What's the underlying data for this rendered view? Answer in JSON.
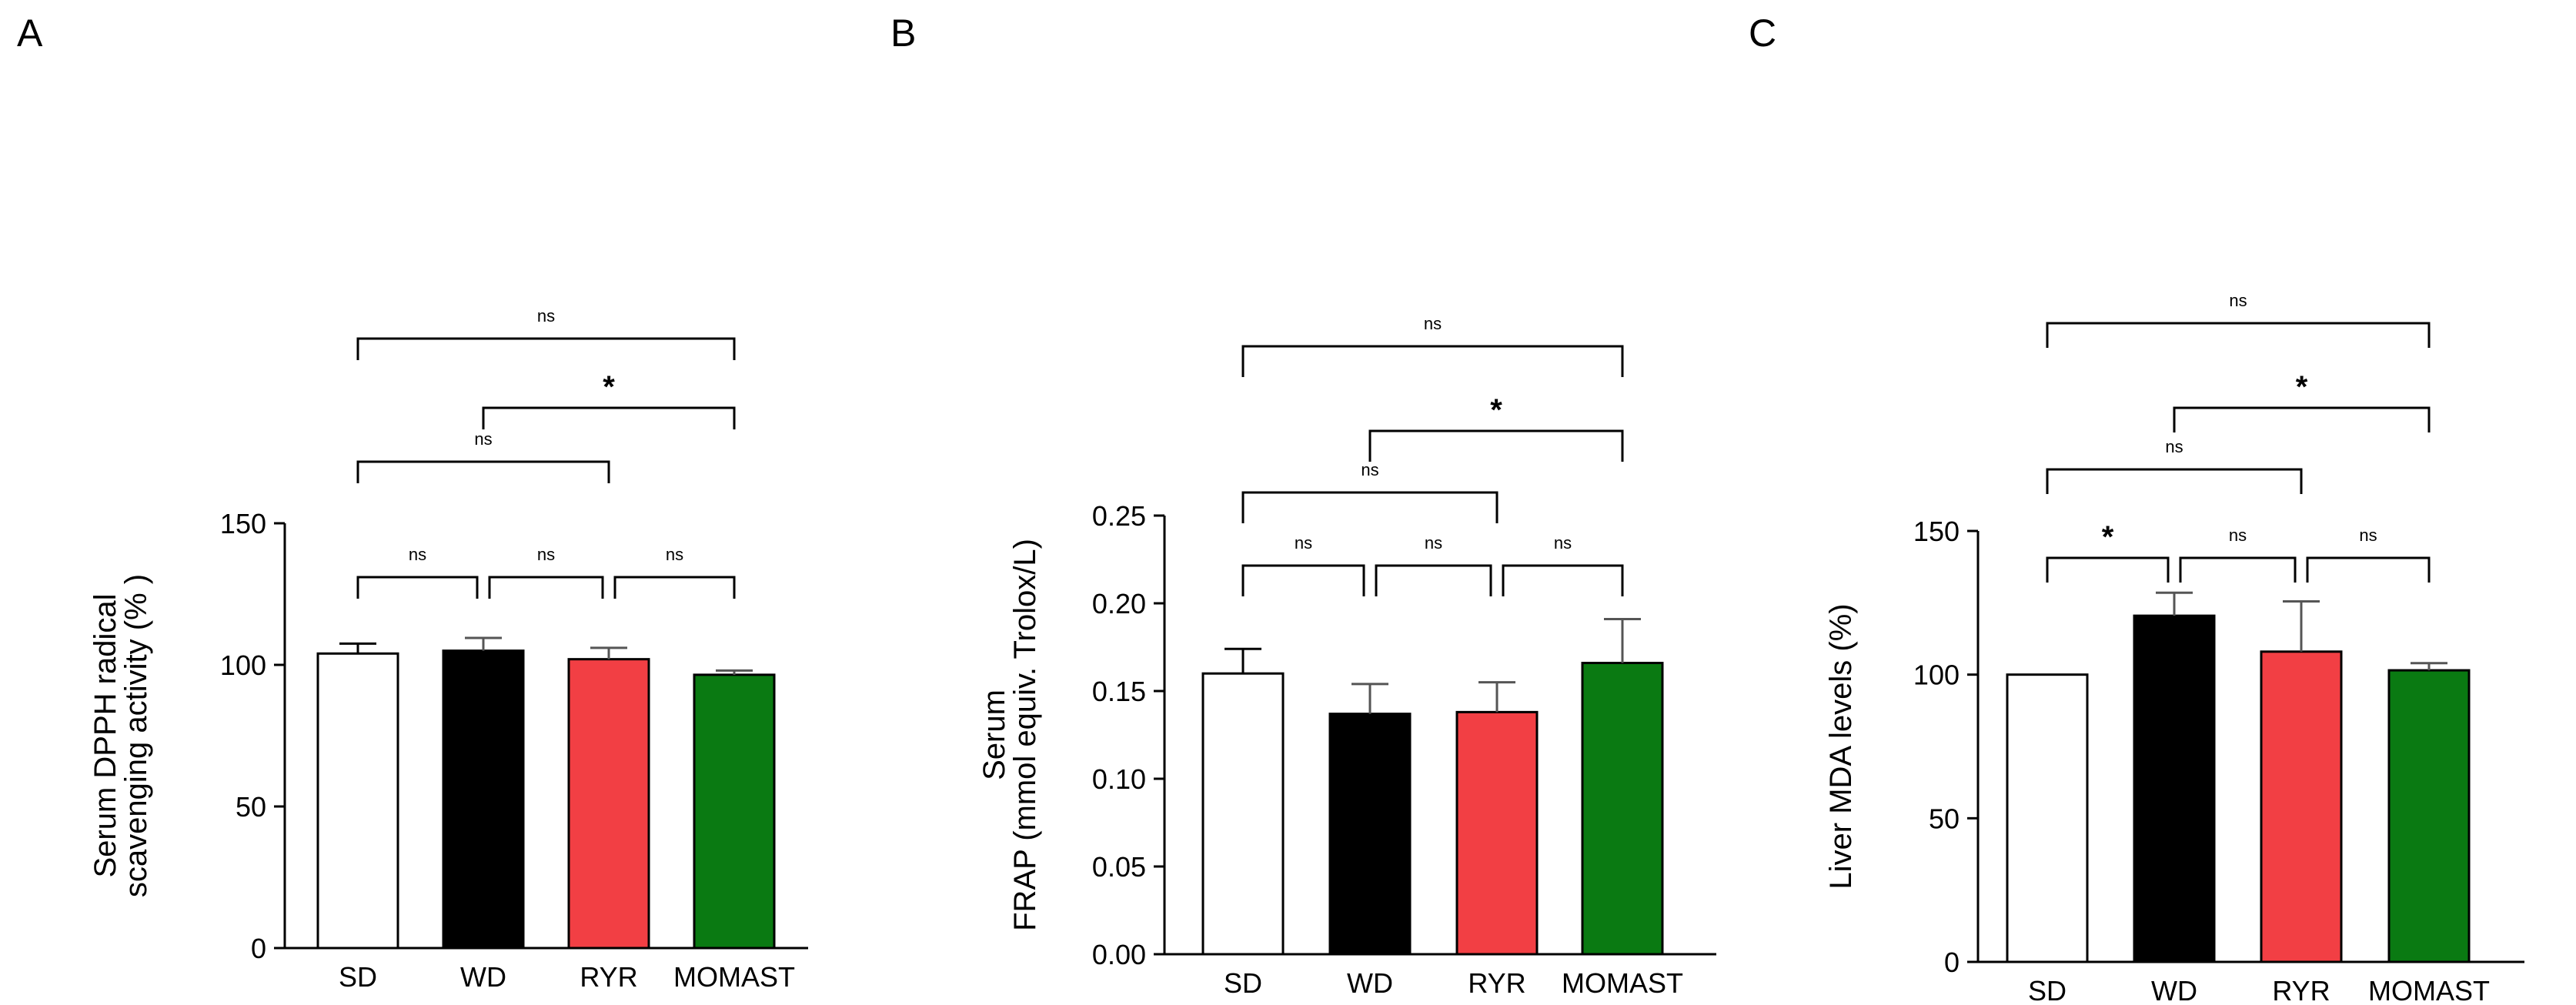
{
  "chart_data": [
    {
      "type": "bar",
      "panel_label": "A",
      "categories": [
        "SD",
        "WD",
        "RYR",
        "MOMAST"
      ],
      "values": [
        104,
        105,
        102,
        96.5
      ],
      "errors": [
        3.5,
        4.5,
        4,
        1.5
      ],
      "colors": [
        "#ffffff",
        "#000000",
        "#f23f44",
        "#0a7a12"
      ],
      "ylabel": [
        "Serum DPPH radical",
        "scavenging activity (% )"
      ],
      "ylim": [
        0,
        150
      ],
      "yticks": [
        0,
        50,
        100,
        150
      ],
      "ytick_labels": [
        "0",
        "50",
        "100",
        "150"
      ],
      "comparisons": [
        {
          "from": 0,
          "to": 1,
          "label": "ns",
          "level": 1
        },
        {
          "from": 1,
          "to": 2,
          "label": "ns",
          "level": 1
        },
        {
          "from": 2,
          "to": 3,
          "label": "ns",
          "level": 1
        },
        {
          "from": 0,
          "to": 2,
          "label": "ns",
          "level": 2
        },
        {
          "from": 1,
          "to": 3,
          "label": "*",
          "level": 3
        },
        {
          "from": 0,
          "to": 3,
          "label": "ns",
          "level": 4
        }
      ]
    },
    {
      "type": "bar",
      "panel_label": "B",
      "categories": [
        "SD",
        "WD",
        "RYR",
        "MOMAST"
      ],
      "values": [
        0.16,
        0.137,
        0.138,
        0.166
      ],
      "errors": [
        0.014,
        0.017,
        0.017,
        0.025
      ],
      "colors": [
        "#ffffff",
        "#000000",
        "#f23f44",
        "#0a7a12"
      ],
      "ylabel": [
        "Serum",
        "FRAP (mmol equiv. Trolox/L)"
      ],
      "ylim": [
        0,
        0.25
      ],
      "yticks": [
        0,
        0.05,
        0.1,
        0.15,
        0.2,
        0.25
      ],
      "ytick_labels": [
        "0.00",
        "0.05",
        "0.10",
        "0.15",
        "0.20",
        "0.25"
      ],
      "comparisons": [
        {
          "from": 0,
          "to": 1,
          "label": "ns",
          "level": 1
        },
        {
          "from": 1,
          "to": 2,
          "label": "ns",
          "level": 1
        },
        {
          "from": 2,
          "to": 3,
          "label": "ns",
          "level": 1
        },
        {
          "from": 0,
          "to": 2,
          "label": "ns",
          "level": 2
        },
        {
          "from": 1,
          "to": 3,
          "label": "*",
          "level": 3
        },
        {
          "from": 0,
          "to": 3,
          "label": "ns",
          "level": 4
        }
      ]
    },
    {
      "type": "bar",
      "panel_label": "C",
      "categories": [
        "SD",
        "WD",
        "RYR",
        "MOMAST"
      ],
      "values": [
        100,
        120.5,
        108,
        101.5
      ],
      "errors": [
        0,
        8,
        17.5,
        2.5
      ],
      "colors": [
        "#ffffff",
        "#000000",
        "#f23f44",
        "#0a7a12"
      ],
      "ylabel": [
        "Liver MDA levels (%)"
      ],
      "ylim": [
        0,
        150
      ],
      "yticks": [
        0,
        50,
        100,
        150
      ],
      "ytick_labels": [
        "0",
        "50",
        "100",
        "150"
      ],
      "comparisons": [
        {
          "from": 0,
          "to": 1,
          "label": "*",
          "level": 1
        },
        {
          "from": 1,
          "to": 2,
          "label": "ns",
          "level": 1
        },
        {
          "from": 2,
          "to": 3,
          "label": "ns",
          "level": 1
        },
        {
          "from": 0,
          "to": 2,
          "label": "ns",
          "level": 2
        },
        {
          "from": 1,
          "to": 3,
          "label": "*",
          "level": 3
        },
        {
          "from": 0,
          "to": 3,
          "label": "ns",
          "level": 4
        }
      ]
    }
  ]
}
